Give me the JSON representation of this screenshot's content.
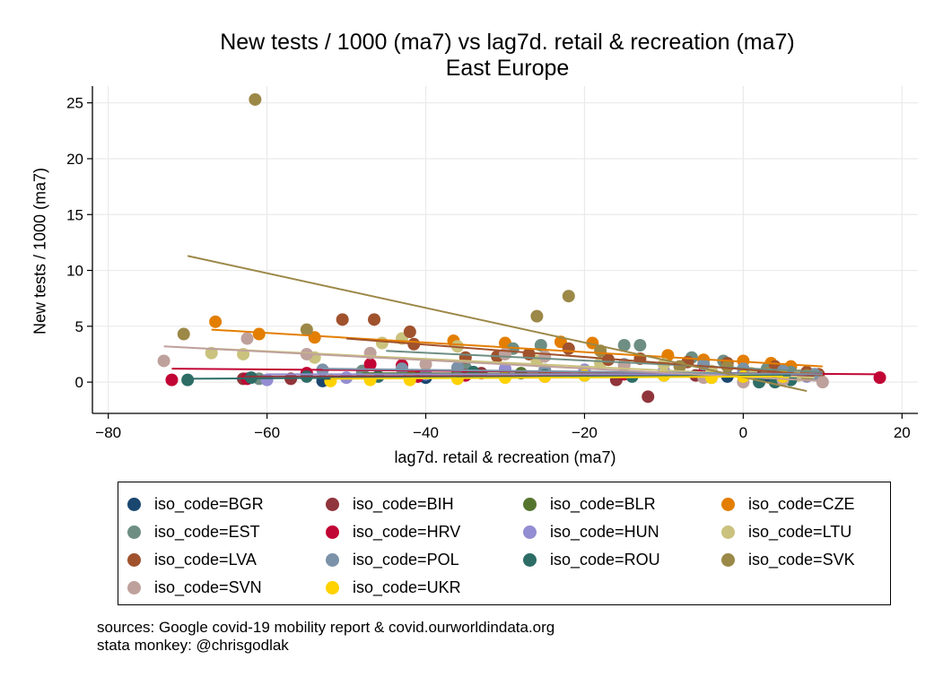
{
  "chart_data": {
    "type": "scatter",
    "title": "New tests / 1000 (ma7) vs lag7d. retail & recreation (ma7)",
    "subtitle": "East Europe",
    "xlabel": "lag7d. retail & recreation (ma7)",
    "ylabel": "New tests / 1000 (ma7)",
    "xlim": [
      -82,
      22
    ],
    "ylim": [
      -2.8,
      26.5
    ],
    "xticks": [
      -80,
      -60,
      -40,
      -20,
      0,
      20
    ],
    "yticks": [
      0,
      5,
      10,
      15,
      20,
      25
    ],
    "grid": true,
    "legend_position": "bottom",
    "series": [
      {
        "name": "iso_code=BGR",
        "color": "#1a476f",
        "points": [
          [
            -53,
            0.1
          ],
          [
            -47,
            0.3
          ],
          [
            -40,
            0.4
          ],
          [
            -30,
            0.5
          ],
          [
            -20,
            0.6
          ],
          [
            -10,
            0.6
          ],
          [
            -2,
            0.5
          ],
          [
            3,
            0.6
          ],
          [
            8,
            0.7
          ]
        ],
        "fit": [
          [
            -53,
            0.3
          ],
          [
            8,
            0.7
          ]
        ]
      },
      {
        "name": "iso_code=BIH",
        "color": "#90353b",
        "points": [
          [
            -63,
            0.3
          ],
          [
            -57,
            0.3
          ],
          [
            -42,
            0.5
          ],
          [
            -33,
            0.8
          ],
          [
            -25,
            1.0
          ],
          [
            -16,
            0.2
          ],
          [
            -12,
            -1.3
          ],
          [
            -6,
            0.6
          ],
          [
            2,
            0.5
          ],
          [
            9,
            0.7
          ]
        ],
        "fit": [
          [
            -63,
            0.5
          ],
          [
            9,
            0.6
          ]
        ]
      },
      {
        "name": "iso_code=BLR",
        "color": "#55752f",
        "points": [
          [
            -48,
            0.8
          ],
          [
            -36,
            0.7
          ],
          [
            -28,
            0.8
          ],
          [
            -20,
            0.7
          ],
          [
            -10,
            0.8
          ],
          [
            -5,
            0.7
          ],
          [
            0,
            0.8
          ],
          [
            5,
            0.7
          ]
        ],
        "fit": [
          [
            -48,
            0.8
          ],
          [
            5,
            0.7
          ]
        ]
      },
      {
        "name": "iso_code=CZE",
        "color": "#e37e00",
        "points": [
          [
            -66.5,
            5.4
          ],
          [
            -61,
            4.3
          ],
          [
            -54,
            4.0
          ],
          [
            -36.5,
            3.7
          ],
          [
            -30,
            3.5
          ],
          [
            -23,
            3.6
          ],
          [
            -19,
            3.5
          ],
          [
            -9.5,
            2.4
          ],
          [
            -5,
            2.0
          ],
          [
            0,
            1.9
          ],
          [
            3.5,
            1.7
          ],
          [
            6,
            1.4
          ]
        ],
        "fit": [
          [
            -67,
            4.7
          ],
          [
            10,
            1.4
          ]
        ]
      },
      {
        "name": "iso_code=EST",
        "color": "#6e8e84",
        "points": [
          [
            -61,
            0.3
          ],
          [
            -48,
            1.0
          ],
          [
            -35,
            1.3
          ],
          [
            -29,
            3.0
          ],
          [
            -25.5,
            3.3
          ],
          [
            -15,
            3.3
          ],
          [
            -13,
            3.3
          ],
          [
            -6.5,
            2.2
          ],
          [
            -2.5,
            1.9
          ],
          [
            3,
            1.2
          ],
          [
            6,
            0.9
          ],
          [
            9,
            0.7
          ]
        ],
        "fit": [
          [
            -45,
            2.8
          ],
          [
            10,
            0.9
          ]
        ]
      },
      {
        "name": "iso_code=HRV",
        "color": "#c10534",
        "points": [
          [
            -72,
            0.2
          ],
          [
            -62.5,
            0.3
          ],
          [
            -55,
            0.8
          ],
          [
            -47,
            1.6
          ],
          [
            -43,
            1.5
          ],
          [
            -41,
            0.5
          ],
          [
            -35,
            0.6
          ],
          [
            -25,
            0.5
          ],
          [
            -15,
            0.7
          ],
          [
            -5,
            0.8
          ],
          [
            5,
            0.7
          ],
          [
            17.2,
            0.4
          ]
        ],
        "fit": [
          [
            -72,
            1.2
          ],
          [
            17,
            0.7
          ]
        ]
      },
      {
        "name": "iso_code=HUN",
        "color": "#938dd2",
        "points": [
          [
            -60,
            0.2
          ],
          [
            -50,
            0.4
          ],
          [
            -40,
            0.7
          ],
          [
            -30,
            1.2
          ],
          [
            -20,
            1.1
          ],
          [
            -10,
            1.0
          ],
          [
            0,
            0.9
          ],
          [
            5,
            0.6
          ],
          [
            8,
            0.5
          ]
        ],
        "fit": [
          [
            -60,
            0.7
          ],
          [
            9,
            0.7
          ]
        ]
      },
      {
        "name": "iso_code=LTU",
        "color": "#cac27e",
        "points": [
          [
            -67,
            2.6
          ],
          [
            -63,
            2.5
          ],
          [
            -54,
            2.2
          ],
          [
            -45.5,
            3.5
          ],
          [
            -43,
            3.9
          ],
          [
            -36,
            3.2
          ],
          [
            -26,
            1.9
          ],
          [
            -18,
            1.7
          ],
          [
            -10,
            1.6
          ],
          [
            -4,
            1.0
          ],
          [
            1,
            0.8
          ],
          [
            7,
            0.6
          ]
        ],
        "fit": [
          [
            -67,
            3.0
          ],
          [
            9,
            0.4
          ]
        ]
      },
      {
        "name": "iso_code=LVA",
        "color": "#a0522d",
        "points": [
          [
            -50.5,
            5.6
          ],
          [
            -46.5,
            5.6
          ],
          [
            -42,
            4.5
          ],
          [
            -41.5,
            3.4
          ],
          [
            -42,
            0.6
          ],
          [
            -35,
            2.2
          ],
          [
            -31,
            2.3
          ],
          [
            -27,
            2.5
          ],
          [
            -22,
            3.0
          ],
          [
            -17,
            2.0
          ],
          [
            -13,
            2.1
          ],
          [
            -7,
            1.8
          ],
          [
            -2,
            1.7
          ],
          [
            4,
            1.4
          ],
          [
            8,
            0.9
          ],
          [
            9.5,
            0.7
          ]
        ],
        "fit": [
          [
            -50,
            3.9
          ],
          [
            10,
            0.6
          ]
        ]
      },
      {
        "name": "iso_code=POL",
        "color": "#7b92a8",
        "points": [
          [
            -53,
            1.1
          ],
          [
            -43,
            1.2
          ],
          [
            -36,
            1.3
          ],
          [
            -25,
            1.1
          ],
          [
            -15,
            1.6
          ],
          [
            -5,
            1.6
          ],
          [
            0,
            1.2
          ],
          [
            5,
            1.0
          ],
          [
            9,
            0.7
          ]
        ],
        "fit": [
          [
            -53,
            1.2
          ],
          [
            10,
            0.7
          ]
        ]
      },
      {
        "name": "iso_code=ROU",
        "color": "#2d6d66",
        "points": [
          [
            -70,
            0.2
          ],
          [
            -62,
            0.4
          ],
          [
            -55,
            0.5
          ],
          [
            -46,
            0.5
          ],
          [
            -34,
            0.9
          ],
          [
            -25,
            0.6
          ],
          [
            -14,
            0.5
          ],
          [
            -4,
            0.4
          ],
          [
            2,
            0.0
          ],
          [
            4,
            0.0
          ],
          [
            6,
            0.2
          ]
        ],
        "fit": [
          [
            -70,
            0.3
          ],
          [
            6,
            0.6
          ]
        ]
      },
      {
        "name": "iso_code=SVK",
        "color": "#9c8847",
        "points": [
          [
            -61.5,
            25.3
          ],
          [
            -70.5,
            4.3
          ],
          [
            -55,
            4.7
          ],
          [
            -26,
            5.9
          ],
          [
            -22,
            7.7
          ],
          [
            -18,
            2.8
          ],
          [
            -8,
            1.4
          ],
          [
            -2,
            1.4
          ],
          [
            3,
            0.8
          ],
          [
            8,
            0.6
          ]
        ],
        "fit": [
          [
            -70,
            11.3
          ],
          [
            8,
            -0.8
          ]
        ]
      },
      {
        "name": "iso_code=SVN",
        "color": "#bfa19c",
        "points": [
          [
            -73,
            1.9
          ],
          [
            -62.5,
            3.9
          ],
          [
            -55,
            2.5
          ],
          [
            -47,
            2.6
          ],
          [
            -40,
            1.6
          ],
          [
            -30,
            2.5
          ],
          [
            -25,
            2.3
          ],
          [
            -15,
            1.5
          ],
          [
            -5,
            0.4
          ],
          [
            0,
            0.0
          ],
          [
            5,
            0.2
          ],
          [
            10,
            0.0
          ]
        ],
        "fit": [
          [
            -73,
            3.2
          ],
          [
            10,
            0.1
          ]
        ]
      },
      {
        "name": "iso_code=UKR",
        "color": "#ffd200",
        "points": [
          [
            -52,
            0.1
          ],
          [
            -47,
            0.2
          ],
          [
            -42,
            0.2
          ],
          [
            -36,
            0.3
          ],
          [
            -30,
            0.4
          ],
          [
            -25,
            0.5
          ],
          [
            -20,
            0.6
          ],
          [
            -10,
            0.6
          ],
          [
            -4,
            0.4
          ],
          [
            0,
            0.5
          ],
          [
            5,
            0.5
          ]
        ],
        "fit": [
          [
            -52,
            0.3
          ],
          [
            5,
            0.5
          ]
        ]
      }
    ]
  },
  "legend_order": [
    0,
    1,
    2,
    3,
    4,
    5,
    6,
    7,
    8,
    9,
    10,
    11,
    12,
    13
  ],
  "legend_display": [
    [
      "iso_code=BGR",
      "iso_code=BIH",
      "iso_code=BLR",
      "iso_code=CZE"
    ],
    [
      "iso_code=EST",
      "iso_code=HRV",
      "iso_code=HUN",
      "iso_code=LTU"
    ],
    [
      "iso_code=LVA",
      "iso_code=POL",
      "iso_code=ROU",
      "iso_code=SVK"
    ],
    [
      "iso_code=SVN",
      "iso_code=UKR"
    ]
  ],
  "sources": {
    "line1": "sources: Google covid-19 mobility report & covid.ourworldindata.org",
    "line2": "stata monkey: @chrisgodlak"
  }
}
